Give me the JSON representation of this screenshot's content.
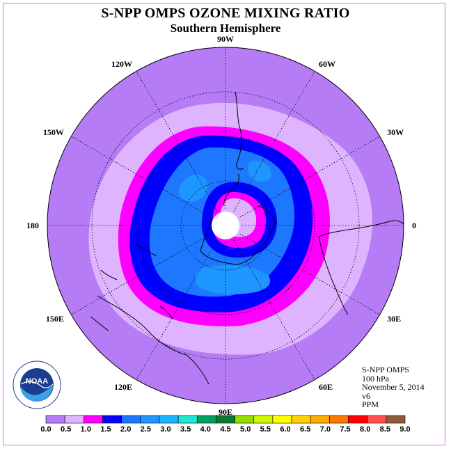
{
  "title": "S-NPP OMPS OZONE MIXING RATIO",
  "subtitle": "Southern Hemisphere",
  "longitude_labels": [
    {
      "label": "90W",
      "lon": -90
    },
    {
      "label": "60W",
      "lon": -60
    },
    {
      "label": "30W",
      "lon": -30
    },
    {
      "label": "0",
      "lon": 0
    },
    {
      "label": "30E",
      "lon": 30
    },
    {
      "label": "60E",
      "lon": 60
    },
    {
      "label": "90E",
      "lon": 90
    },
    {
      "label": "120E",
      "lon": 120
    },
    {
      "label": "150E",
      "lon": 150
    },
    {
      "label": "180",
      "lon": 180
    },
    {
      "label": "150W",
      "lon": -150
    },
    {
      "label": "120W",
      "lon": -120
    }
  ],
  "info": {
    "instrument": "S-NPP OMPS",
    "level": "100 hPa",
    "date": "November 5, 2014",
    "version": "v6",
    "units": "PPM"
  },
  "colorbar": {
    "ticks": [
      "0.0",
      "0.5",
      "1.0",
      "1.5",
      "2.0",
      "2.5",
      "3.0",
      "3.5",
      "4.0",
      "4.5",
      "5.0",
      "5.5",
      "6.0",
      "6.5",
      "7.0",
      "7.5",
      "8.0",
      "8.5",
      "9.0"
    ],
    "colors": [
      "#b57cf5",
      "#deb4ff",
      "#ff00ff",
      "#0000ff",
      "#1e78ff",
      "#1e96ff",
      "#1eb4ff",
      "#1ee6d2",
      "#00a05a",
      "#0a7832",
      "#96dc00",
      "#d2f500",
      "#ffff00",
      "#ffd200",
      "#ffaa00",
      "#ff7800",
      "#ff0000",
      "#ff5050",
      "#8c5a3c"
    ]
  },
  "ozone_field": {
    "levels_ppm": [
      0.5,
      1.0,
      1.5,
      2.0,
      2.5,
      3.0
    ],
    "level_colors": [
      "#b57cf5",
      "#deb4ff",
      "#ff00ff",
      "#0000ff",
      "#1e78ff",
      "#1e96ff"
    ],
    "missing_color": "#ffffff"
  },
  "logo": {
    "text": "NOAA",
    "ring_text": "NATIONAL OCEANIC AND ATMOSPHERIC ADMINISTRATION · U.S. DEPARTMENT OF COMMERCE"
  }
}
